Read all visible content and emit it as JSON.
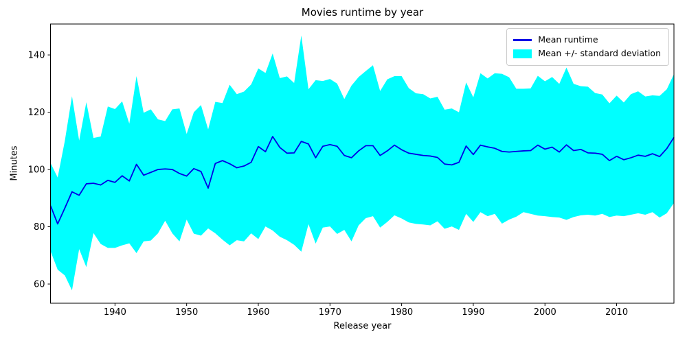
{
  "title": "Movies runtime by year",
  "xlabel": "Release year",
  "ylabel": "Minutes",
  "legend": {
    "line_label": "Mean runtime",
    "band_label": "Mean +/- standard deviation",
    "position": "upper right"
  },
  "colors": {
    "mean_line": "#0000e6",
    "band": "#00ffff",
    "axis": "#000000",
    "background": "#ffffff",
    "legend_border": "#cccccc"
  },
  "chart_data": {
    "type": "line",
    "title": "Movies runtime by year",
    "xlabel": "Release year",
    "ylabel": "Minutes",
    "grid": false,
    "legend": [
      "Mean runtime",
      "Mean +/- standard deviation"
    ],
    "legend_position": "upper right",
    "xlim": [
      1931,
      2018
    ],
    "ylim": [
      53.3,
      150.8
    ],
    "xticks": [
      1940,
      1950,
      1960,
      1970,
      1980,
      1990,
      2000,
      2010
    ],
    "yticks": [
      60,
      80,
      100,
      120,
      140
    ],
    "x": [
      1931,
      1932,
      1933,
      1934,
      1935,
      1936,
      1937,
      1938,
      1939,
      1940,
      1941,
      1942,
      1943,
      1944,
      1945,
      1946,
      1947,
      1948,
      1949,
      1950,
      1951,
      1952,
      1953,
      1954,
      1955,
      1956,
      1957,
      1958,
      1959,
      1960,
      1961,
      1962,
      1963,
      1964,
      1965,
      1966,
      1967,
      1968,
      1969,
      1970,
      1971,
      1972,
      1973,
      1974,
      1975,
      1976,
      1977,
      1978,
      1979,
      1980,
      1981,
      1982,
      1983,
      1984,
      1985,
      1986,
      1987,
      1988,
      1989,
      1990,
      1991,
      1992,
      1993,
      1994,
      1995,
      1996,
      1997,
      1998,
      1999,
      2000,
      2001,
      2002,
      2003,
      2004,
      2005,
      2006,
      2007,
      2008,
      2009,
      2010,
      2011,
      2012,
      2013,
      2014,
      2015,
      2016,
      2017,
      2018
    ],
    "series": [
      {
        "name": "Mean runtime",
        "role": "mean",
        "values": [
          87.4,
          81.0,
          86.5,
          92.2,
          91.0,
          95.0,
          95.2,
          94.6,
          96.2,
          95.5,
          97.8,
          96.0,
          101.8,
          98.0,
          99.0,
          100.0,
          100.2,
          100.0,
          98.6,
          97.7,
          100.3,
          99.3,
          93.5,
          102.1,
          103.1,
          102.0,
          100.6,
          101.2,
          102.5,
          108.0,
          106.2,
          111.5,
          107.7,
          105.7,
          105.8,
          109.8,
          108.9,
          104.1,
          108.1,
          108.7,
          108.1,
          104.9,
          104.1,
          106.5,
          108.3,
          108.3,
          104.9,
          106.5,
          108.5,
          106.9,
          105.7,
          105.3,
          104.9,
          104.7,
          104.2,
          101.9,
          101.6,
          102.5,
          108.2,
          105.2,
          108.5,
          107.9,
          107.4,
          106.3,
          106.1,
          106.3,
          106.5,
          106.6,
          108.5,
          107.1,
          107.8,
          106.1,
          108.6,
          106.6,
          107.0,
          105.8,
          105.7,
          105.3,
          103.1,
          104.6,
          103.4,
          104.1,
          105.0,
          104.6,
          105.5,
          104.5,
          107.3,
          111.2
        ]
      },
      {
        "name": "Mean + standard deviation",
        "role": "band-upper",
        "values": [
          102.3,
          97.2,
          110.0,
          125.6,
          110.1,
          123.5,
          111.0,
          111.5,
          122.0,
          121.1,
          123.8,
          116.0,
          132.6,
          119.8,
          121.0,
          117.5,
          116.9,
          121.0,
          121.3,
          112.4,
          120.0,
          122.5,
          114.0,
          123.6,
          123.2,
          129.6,
          126.3,
          127.2,
          129.7,
          135.3,
          133.7,
          140.5,
          131.9,
          132.5,
          130.2,
          146.8,
          128.0,
          131.2,
          130.9,
          131.6,
          130.0,
          124.6,
          129.3,
          132.3,
          134.4,
          136.4,
          127.4,
          131.5,
          132.6,
          132.6,
          128.4,
          126.6,
          126.3,
          124.8,
          125.4,
          120.9,
          121.3,
          120.0,
          130.4,
          125.2,
          133.6,
          131.8,
          133.6,
          133.4,
          132.2,
          128.2,
          128.2,
          128.3,
          132.7,
          130.8,
          132.3,
          129.9,
          135.6,
          129.9,
          129.1,
          128.9,
          126.7,
          126.2,
          123.1,
          125.8,
          123.4,
          126.3,
          127.3,
          125.5,
          125.9,
          125.7,
          128.0,
          133.3
        ]
      },
      {
        "name": "Mean - standard deviation",
        "role": "band-lower",
        "values": [
          71.5,
          65.0,
          63.0,
          57.8,
          72.2,
          65.9,
          77.8,
          74.0,
          72.6,
          72.6,
          73.5,
          74.2,
          70.8,
          74.9,
          75.2,
          77.7,
          82.1,
          77.7,
          74.9,
          82.5,
          77.6,
          76.9,
          79.4,
          77.7,
          75.5,
          73.5,
          75.3,
          74.9,
          77.7,
          75.7,
          80.1,
          78.7,
          76.5,
          75.3,
          73.7,
          71.3,
          80.9,
          74.1,
          79.7,
          80.1,
          77.5,
          78.9,
          74.9,
          80.5,
          83.0,
          83.7,
          79.7,
          81.7,
          84.0,
          82.9,
          81.5,
          81.0,
          80.8,
          80.5,
          81.9,
          79.3,
          80.1,
          78.9,
          84.5,
          81.7,
          85.1,
          83.7,
          84.5,
          81.1,
          82.5,
          83.5,
          85.1,
          84.5,
          83.9,
          83.7,
          83.4,
          83.2,
          82.4,
          83.4,
          84.0,
          84.2,
          83.9,
          84.5,
          83.4,
          83.9,
          83.7,
          84.2,
          84.7,
          84.2,
          85.1,
          83.2,
          84.7,
          88.3
        ]
      }
    ]
  }
}
